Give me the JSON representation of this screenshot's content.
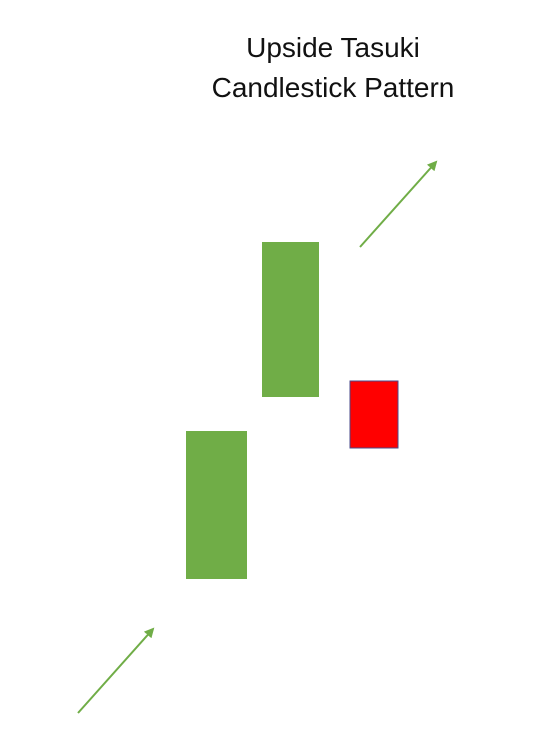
{
  "title": {
    "line1": "Upside Tasuki",
    "line2": "Candlestick Pattern"
  },
  "colors": {
    "bullish": "#70ad47",
    "bearish": "#ff0000",
    "bearish_border": "#4a4a8a",
    "arrow": "#70ad47"
  },
  "candles": [
    {
      "name": "first-bullish-candle",
      "type": "bullish"
    },
    {
      "name": "second-bullish-candle",
      "type": "bullish"
    },
    {
      "name": "bearish-candle",
      "type": "bearish"
    }
  ],
  "arrows": [
    {
      "name": "uptrend-arrow-bottom",
      "direction": "up-right"
    },
    {
      "name": "uptrend-arrow-top",
      "direction": "up-right"
    }
  ]
}
